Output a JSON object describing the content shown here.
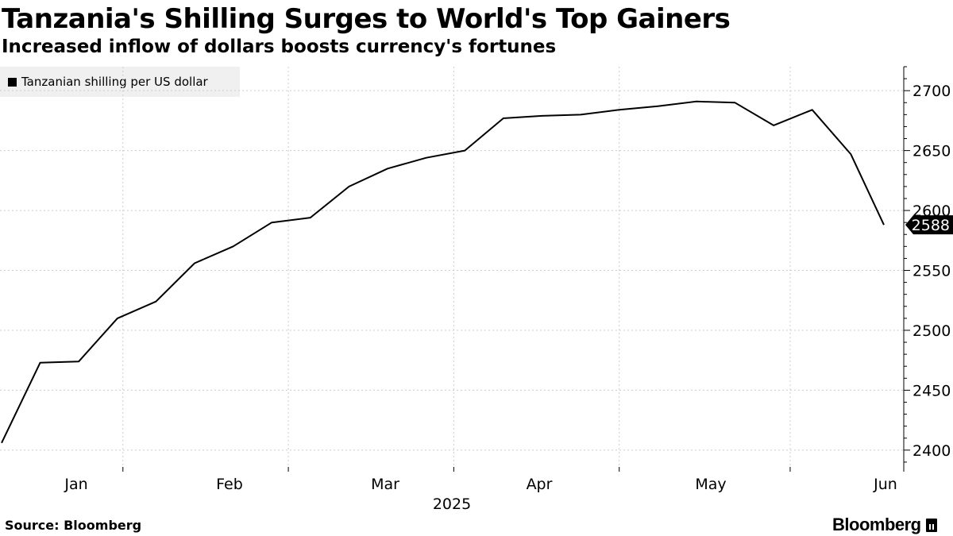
{
  "header": {
    "title": "Tanzania's Shilling Surges to World's Top Gainers",
    "subtitle": "Increased inflow of dollars boosts currency's fortunes"
  },
  "footer": {
    "source": "Source: Bloomberg",
    "brand": "Bloomberg"
  },
  "colors": {
    "line": "#000000",
    "grid": "#cccccc",
    "legend_bg": "#f0f0f0",
    "last_value_tag": "#000000"
  },
  "chart_data": {
    "type": "line",
    "title": "Tanzania's Shilling Surges to World's Top Gainers",
    "subtitle": "Increased inflow of dollars boosts currency's fortunes",
    "legend": {
      "entries": [
        "Tanzanian shilling per US dollar"
      ],
      "placement": "top-left"
    },
    "xlabel": "2025",
    "x_ticks": [
      "Jan",
      "Feb",
      "Mar",
      "Apr",
      "May",
      "Jun"
    ],
    "x_range": [
      "2024-12-25",
      "2025-06-03"
    ],
    "y_ticks": [
      2400,
      2450,
      2500,
      2550,
      2600,
      2650,
      2700
    ],
    "ylim": [
      2382,
      2720
    ],
    "y_axis_side": "right",
    "grid": true,
    "last_value_label": "2588",
    "series": [
      {
        "name": "Tanzanian shilling per US dollar",
        "points": [
          {
            "x": "2024-12-25",
            "y": 2406
          },
          {
            "x": "2025-01-01",
            "y": 2473
          },
          {
            "x": "2025-01-08",
            "y": 2474
          },
          {
            "x": "2025-01-15",
            "y": 2510
          },
          {
            "x": "2025-01-22",
            "y": 2524
          },
          {
            "x": "2025-01-29",
            "y": 2556
          },
          {
            "x": "2025-02-05",
            "y": 2570
          },
          {
            "x": "2025-02-12",
            "y": 2590
          },
          {
            "x": "2025-02-19",
            "y": 2594
          },
          {
            "x": "2025-02-26",
            "y": 2620
          },
          {
            "x": "2025-03-05",
            "y": 2635
          },
          {
            "x": "2025-03-12",
            "y": 2644
          },
          {
            "x": "2025-03-19",
            "y": 2650
          },
          {
            "x": "2025-03-26",
            "y": 2677
          },
          {
            "x": "2025-04-02",
            "y": 2679
          },
          {
            "x": "2025-04-09",
            "y": 2680
          },
          {
            "x": "2025-04-16",
            "y": 2684
          },
          {
            "x": "2025-04-23",
            "y": 2687
          },
          {
            "x": "2025-04-30",
            "y": 2691
          },
          {
            "x": "2025-05-07",
            "y": 2690
          },
          {
            "x": "2025-05-14",
            "y": 2671
          },
          {
            "x": "2025-05-21",
            "y": 2684
          },
          {
            "x": "2025-05-28",
            "y": 2647
          },
          {
            "x": "2025-06-03",
            "y": 2588
          }
        ]
      }
    ]
  }
}
